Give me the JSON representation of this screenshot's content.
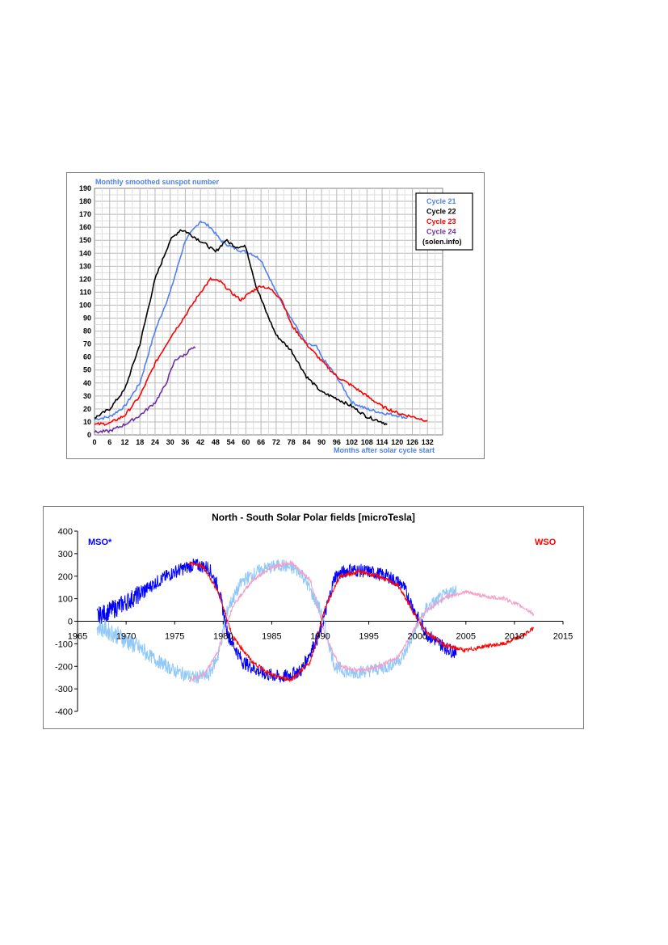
{
  "chart_data": [
    {
      "type": "line",
      "title": "Monthly smoothed sunspot number",
      "xlabel": "Months after solar cycle start",
      "ylabel": "",
      "xlim": [
        0,
        138
      ],
      "ylim": [
        0,
        190
      ],
      "xticks": [
        0,
        6,
        12,
        18,
        24,
        30,
        36,
        42,
        48,
        54,
        60,
        66,
        72,
        78,
        84,
        90,
        96,
        102,
        108,
        114,
        120,
        126,
        132
      ],
      "yticks": [
        0,
        10,
        20,
        30,
        40,
        50,
        60,
        70,
        80,
        90,
        100,
        110,
        120,
        130,
        140,
        150,
        160,
        170,
        180,
        190
      ],
      "grid": true,
      "legend_position": "top-right",
      "legend_note": "(solen.info)",
      "series": [
        {
          "name": "Cycle 21",
          "color": "#4f81f0",
          "x": [
            0,
            6,
            12,
            18,
            24,
            30,
            36,
            40,
            42,
            46,
            50,
            54,
            58,
            62,
            66,
            72,
            78,
            84,
            88,
            90,
            96,
            102,
            108,
            114,
            120,
            124
          ],
          "y": [
            12,
            14,
            22,
            40,
            80,
            110,
            150,
            160,
            165,
            160,
            150,
            145,
            142,
            140,
            135,
            110,
            90,
            70,
            68,
            60,
            45,
            25,
            20,
            17,
            15,
            13
          ]
        },
        {
          "name": "Cycle 22",
          "color": "#000000",
          "x": [
            0,
            6,
            12,
            18,
            24,
            30,
            34,
            36,
            40,
            44,
            48,
            52,
            56,
            60,
            64,
            68,
            72,
            78,
            84,
            90,
            96,
            102,
            108,
            114,
            116
          ],
          "y": [
            13,
            20,
            35,
            70,
            120,
            150,
            158,
            157,
            152,
            147,
            141,
            150,
            145,
            145,
            115,
            95,
            77,
            65,
            45,
            33,
            28,
            22,
            14,
            10,
            8
          ]
        },
        {
          "name": "Cycle 23",
          "color": "#ff0000",
          "x": [
            0,
            6,
            12,
            18,
            24,
            30,
            36,
            42,
            46,
            50,
            54,
            58,
            62,
            66,
            70,
            74,
            78,
            84,
            90,
            96,
            102,
            108,
            114,
            120,
            126,
            132
          ],
          "y": [
            8,
            9,
            15,
            30,
            55,
            75,
            92,
            110,
            120,
            118,
            110,
            104,
            110,
            115,
            112,
            105,
            85,
            70,
            57,
            45,
            38,
            30,
            22,
            17,
            14,
            11
          ]
        },
        {
          "name": "Cycle 24",
          "color": "#7030a0",
          "x": [
            0,
            6,
            12,
            18,
            24,
            28,
            30,
            32,
            34,
            36,
            38,
            40
          ],
          "y": [
            2,
            3,
            8,
            15,
            25,
            38,
            48,
            58,
            60,
            62,
            66,
            67
          ]
        }
      ]
    },
    {
      "type": "line",
      "title": "North - South Solar Polar fields [microTesla]",
      "xlabel": "",
      "ylabel": "",
      "xlim": [
        1965,
        2015
      ],
      "ylim": [
        -400,
        400
      ],
      "xticks": [
        1965,
        1970,
        1975,
        1980,
        1985,
        1990,
        1995,
        2000,
        2005,
        2010,
        2015
      ],
      "yticks": [
        -400,
        -300,
        -200,
        -100,
        0,
        100,
        200,
        300,
        400
      ],
      "grid": false,
      "annotations": [
        "MSO*",
        "WSO"
      ],
      "series": [
        {
          "name": "MSO*",
          "color": "#0000ff",
          "x": [
            1967,
            1969,
            1971,
            1973,
            1975,
            1977,
            1978.5,
            1979.5,
            1980.5,
            1982,
            1984,
            1986,
            1988,
            1990,
            1991.5,
            1993,
            1995,
            1997,
            1998.5,
            2000,
            2001,
            2002,
            2003,
            2004
          ],
          "y": [
            20,
            60,
            110,
            170,
            220,
            250,
            240,
            150,
            -60,
            -180,
            -230,
            -250,
            -220,
            -50,
            200,
            230,
            220,
            200,
            160,
            20,
            -60,
            -90,
            -120,
            -140
          ]
        },
        {
          "name": "MSO* (mirror)",
          "color": "#90c8f8",
          "x": [
            1967,
            1969,
            1971,
            1973,
            1975,
            1977,
            1978.5,
            1979.5,
            1980.5,
            1982,
            1984,
            1986,
            1988,
            1990,
            1991.5,
            1993,
            1995,
            1997,
            1998.5,
            2000,
            2001,
            2002,
            2003,
            2004
          ],
          "y": [
            -20,
            -60,
            -110,
            -170,
            -220,
            -250,
            -240,
            -150,
            60,
            180,
            230,
            250,
            220,
            50,
            -200,
            -230,
            -220,
            -200,
            -160,
            -20,
            60,
            90,
            120,
            140
          ]
        },
        {
          "name": "WSO",
          "color": "#ff0000",
          "x": [
            1976.5,
            1978,
            1979.5,
            1981,
            1983,
            1985,
            1987,
            1989,
            1990.5,
            1992,
            1994,
            1996,
            1998,
            2000,
            2001,
            2003,
            2005,
            2007,
            2009,
            2011,
            2012
          ],
          "y": [
            260,
            240,
            130,
            -70,
            -180,
            -240,
            -260,
            -180,
            60,
            200,
            220,
            200,
            160,
            10,
            -50,
            -110,
            -130,
            -110,
            -100,
            -60,
            -30
          ]
        },
        {
          "name": "WSO (mirror)",
          "color": "#f4a0c8",
          "x": [
            1976.5,
            1978,
            1979.5,
            1981,
            1983,
            1985,
            1987,
            1989,
            1990.5,
            1992,
            1994,
            1996,
            1998,
            2000,
            2001,
            2003,
            2005,
            2007,
            2009,
            2011,
            2012
          ],
          "y": [
            -260,
            -240,
            -130,
            70,
            180,
            240,
            260,
            180,
            -60,
            -200,
            -220,
            -200,
            -160,
            -10,
            50,
            110,
            130,
            110,
            100,
            60,
            30
          ]
        }
      ]
    }
  ]
}
